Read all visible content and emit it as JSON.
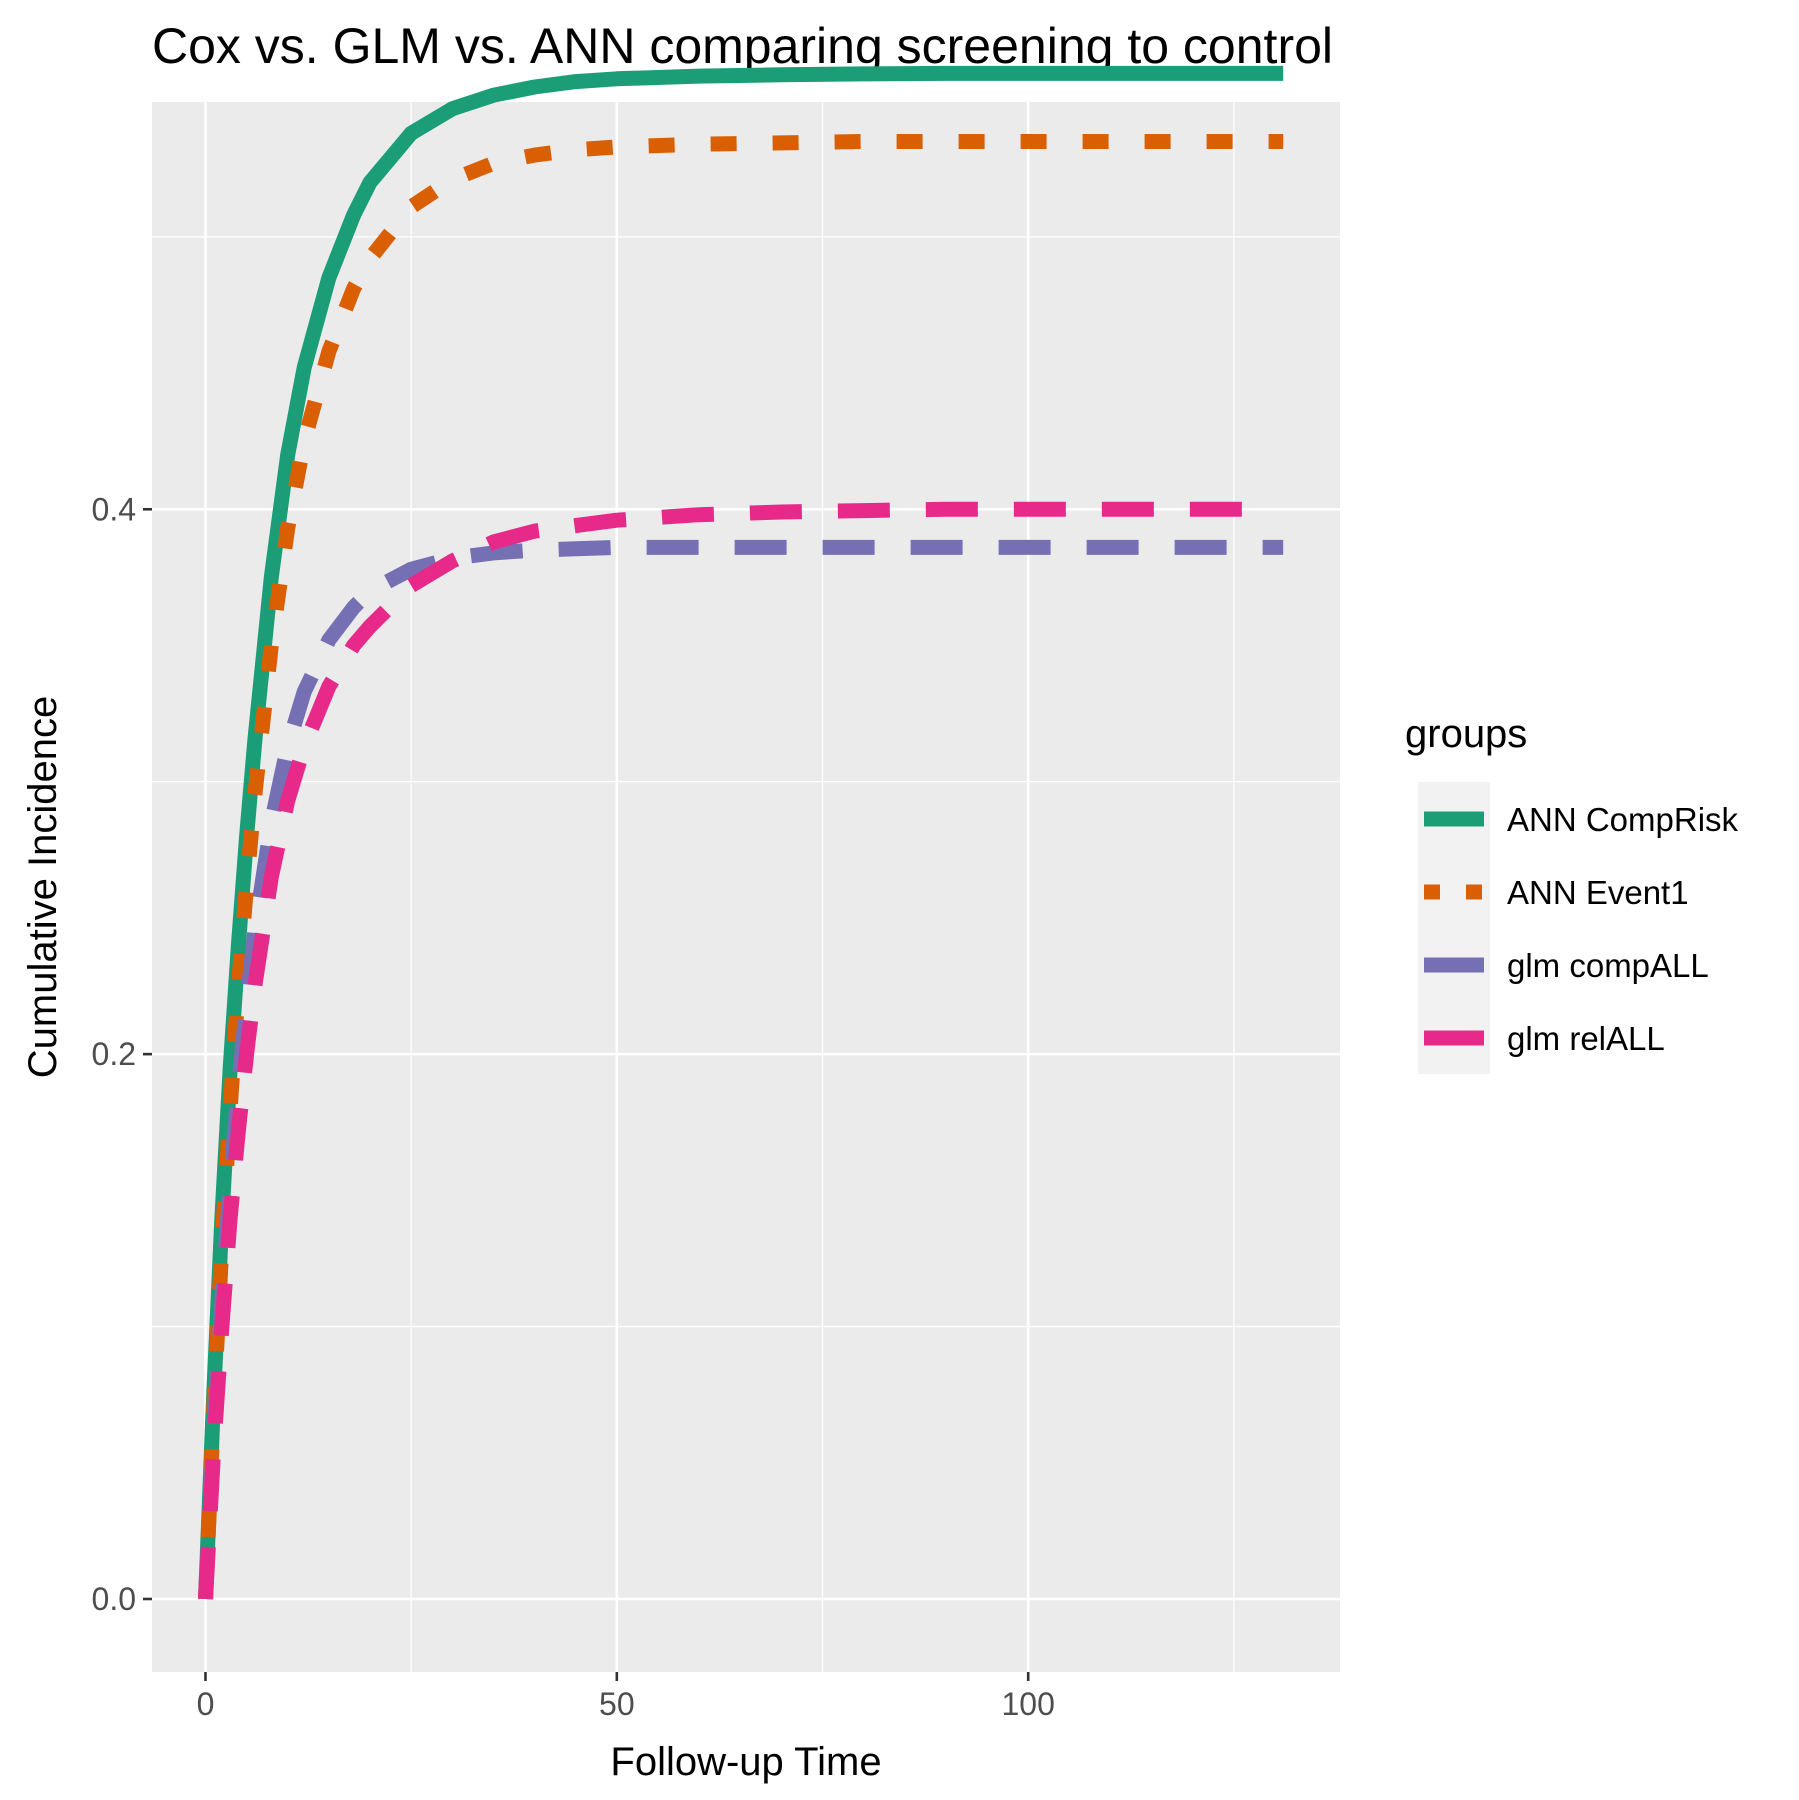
{
  "chart_data": {
    "type": "line",
    "title": "Cox vs. GLM vs. ANN comparing screening to control",
    "xlabel": "Follow-up Time",
    "ylabel": "Cumulative Incidence",
    "xlim": [
      -6.5,
      137.9
    ],
    "ylim": [
      -0.0268,
      0.5495
    ],
    "x_ticks": [
      0,
      50,
      100
    ],
    "x_tick_labels": [
      "0",
      "50",
      "100"
    ],
    "y_ticks": [
      0.0,
      0.2,
      0.4
    ],
    "y_tick_labels": [
      "0.0",
      "0.2",
      "0.4"
    ],
    "x_minor": [
      25,
      75,
      125
    ],
    "y_minor": [
      0.1,
      0.3,
      0.5
    ],
    "grid": true,
    "legend": {
      "title": "groups",
      "position": "right"
    },
    "series": [
      {
        "name": "ANN CompRisk",
        "color": "#1b9e77",
        "dash": "solid",
        "x": [
          0,
          1,
          2,
          3,
          4,
          5,
          6,
          8,
          10,
          12,
          15,
          18,
          20,
          25,
          30,
          35,
          40,
          45,
          50,
          60,
          70,
          80,
          90,
          100,
          110,
          120,
          131
        ],
        "y": [
          0.0,
          0.075,
          0.14,
          0.195,
          0.24,
          0.28,
          0.315,
          0.375,
          0.42,
          0.452,
          0.485,
          0.508,
          0.52,
          0.538,
          0.547,
          0.552,
          0.555,
          0.557,
          0.558,
          0.559,
          0.5595,
          0.5598,
          0.56,
          0.56,
          0.56,
          0.56,
          0.56
        ]
      },
      {
        "name": "ANN Event1",
        "color": "#d95f02",
        "dash": "short",
        "x": [
          0,
          1,
          2,
          3,
          4,
          5,
          6,
          8,
          10,
          12,
          15,
          18,
          20,
          25,
          30,
          35,
          40,
          45,
          50,
          60,
          70,
          80,
          90,
          100,
          110,
          120,
          131
        ],
        "y": [
          0.0,
          0.07,
          0.13,
          0.18,
          0.225,
          0.262,
          0.295,
          0.35,
          0.393,
          0.425,
          0.458,
          0.481,
          0.492,
          0.511,
          0.521,
          0.527,
          0.53,
          0.532,
          0.533,
          0.534,
          0.5345,
          0.535,
          0.535,
          0.535,
          0.535,
          0.535,
          0.535
        ]
      },
      {
        "name": "glm compALL",
        "color": "#7570b3",
        "dash": "long",
        "x": [
          0,
          1,
          2,
          3,
          4,
          5,
          6,
          8,
          10,
          12,
          15,
          18,
          20,
          25,
          30,
          35,
          40,
          45,
          50,
          60,
          70,
          80,
          90,
          100,
          110,
          120,
          131
        ],
        "y": [
          0.0,
          0.06,
          0.11,
          0.152,
          0.188,
          0.218,
          0.245,
          0.285,
          0.313,
          0.333,
          0.352,
          0.364,
          0.37,
          0.378,
          0.382,
          0.384,
          0.385,
          0.3855,
          0.386,
          0.386,
          0.386,
          0.386,
          0.386,
          0.386,
          0.386,
          0.386,
          0.386
        ]
      },
      {
        "name": "glm relALL",
        "color": "#e7298a",
        "dash": "long",
        "x": [
          0,
          1,
          2,
          3,
          4,
          5,
          6,
          8,
          10,
          12,
          15,
          18,
          20,
          25,
          30,
          35,
          40,
          45,
          50,
          60,
          70,
          80,
          90,
          100,
          110,
          120,
          130
        ],
        "y": [
          0.0,
          0.055,
          0.1,
          0.14,
          0.172,
          0.2,
          0.225,
          0.265,
          0.293,
          0.313,
          0.335,
          0.35,
          0.357,
          0.372,
          0.381,
          0.388,
          0.392,
          0.394,
          0.396,
          0.398,
          0.399,
          0.3995,
          0.4,
          0.4,
          0.4,
          0.4,
          0.4
        ]
      }
    ]
  }
}
